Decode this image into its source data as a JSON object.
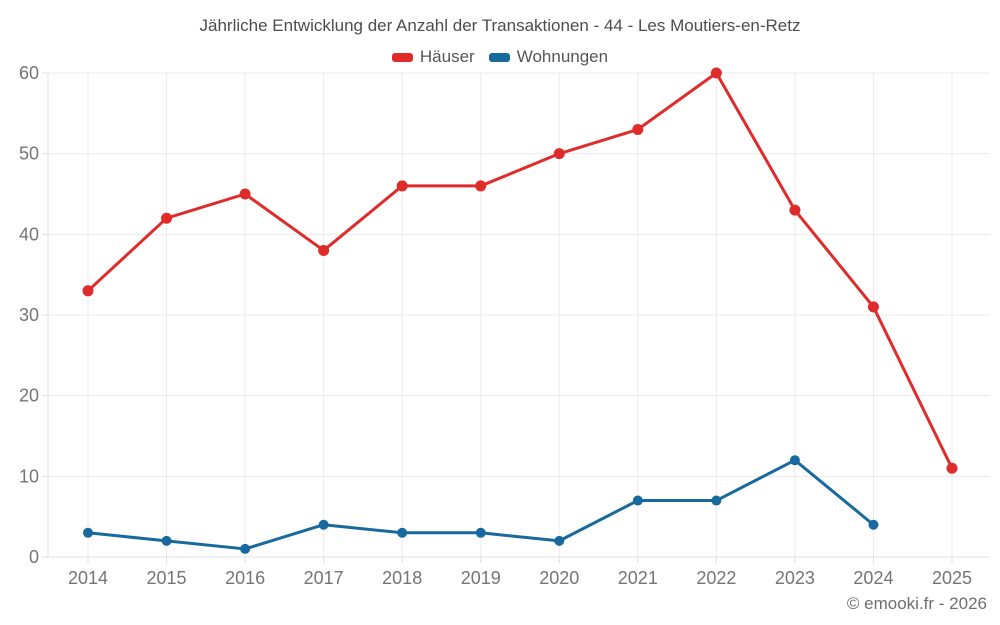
{
  "title": "Jährliche Entwicklung der Anzahl der Transaktionen - 44 - Les Moutiers-en-Retz",
  "legend": [
    {
      "label": "Häuser",
      "color": "#e02b2b"
    },
    {
      "label": "Wohnungen",
      "color": "#17699e"
    }
  ],
  "footer": "© emooki.fr - 2026",
  "colors": {
    "background": "#ffffff",
    "grid": "#ebebeb",
    "axis": "#e0e0e0",
    "tick": "#dcdcdc",
    "axis_text": "#757575",
    "title_text": "#4d4d4d",
    "legend_text": "#565656",
    "footer_text": "#6e6e6e",
    "haeuser_red": "#e02b2b",
    "wohnungen_blue": "#17699e"
  },
  "chart_data": {
    "type": "line",
    "title": "Jährliche Entwicklung der Anzahl der Transaktionen - 44 - Les Moutiers-en-Retz",
    "x": [
      2014,
      2015,
      2016,
      2017,
      2018,
      2019,
      2020,
      2021,
      2022,
      2023,
      2024,
      2025
    ],
    "series": [
      {
        "name": "Häuser",
        "color": "#e02b2b",
        "values": [
          33,
          42,
          45,
          38,
          46,
          46,
          50,
          53,
          60,
          43,
          31,
          11
        ]
      },
      {
        "name": "Wohnungen",
        "color": "#17699e",
        "values": [
          3,
          2,
          1,
          4,
          3,
          3,
          2,
          7,
          7,
          12,
          4,
          null
        ]
      }
    ],
    "xlabel": "",
    "ylabel": "",
    "ylim": [
      0,
      60
    ],
    "yticks": [
      0,
      10,
      20,
      30,
      40,
      50,
      60
    ],
    "grid": true,
    "legend_position": "top",
    "markers": true
  }
}
